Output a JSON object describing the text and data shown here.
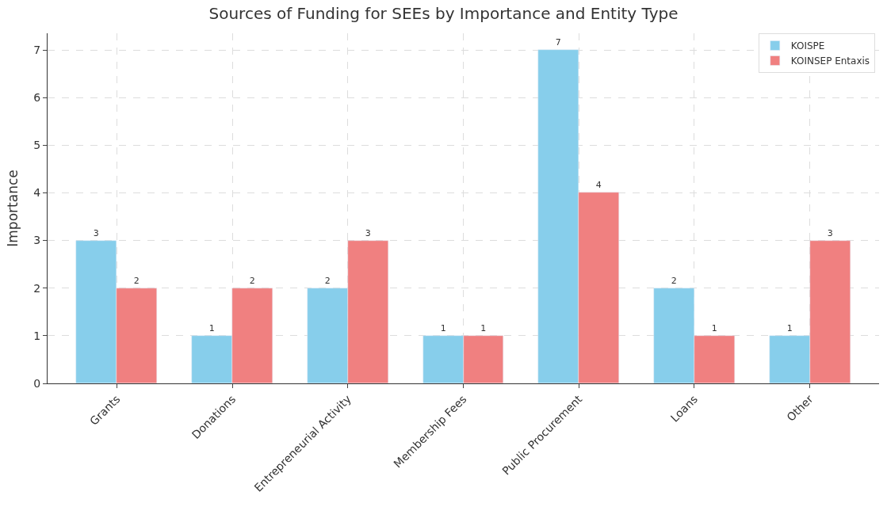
{
  "chart_data": {
    "type": "bar",
    "title": "Sources of Funding for SEEs by Importance and Entity Type",
    "ylabel": "Importance",
    "categories": [
      "Grants",
      "Donations",
      "Entrepreneurial Activity",
      "Membership Fees",
      "Public Procurement",
      "Loans",
      "Other"
    ],
    "series": [
      {
        "name": "KOISPE",
        "color": "#87ceeb",
        "values": [
          3,
          1,
          2,
          1,
          7,
          2,
          1
        ]
      },
      {
        "name": "KOINSEP Entaxis",
        "color": "#f08080",
        "values": [
          2,
          2,
          3,
          1,
          4,
          1,
          3
        ]
      }
    ],
    "ylim": [
      0,
      7.35
    ],
    "yticks": [
      0,
      1,
      2,
      3,
      4,
      5,
      6,
      7
    ],
    "grid": true,
    "legend": "top right",
    "data_labels": true
  }
}
